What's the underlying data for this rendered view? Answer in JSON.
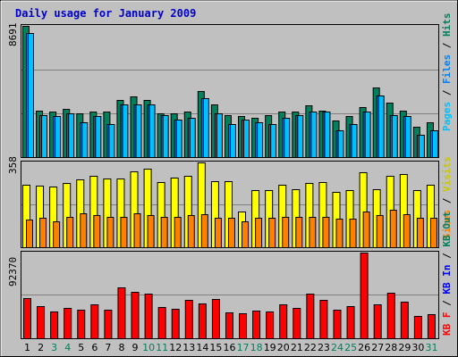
{
  "colors": {
    "background": "#c0c0c0",
    "border": "#000000",
    "title": "#0000cc",
    "hits": "#00805c",
    "files": "#0080ff",
    "pages": "#00c0ff",
    "visits": "#ffff00",
    "sites": "#ff8000",
    "kbf": "#ff0000",
    "kbin": "#0000ff",
    "kbout": "#00805c",
    "day_normal": "#000000",
    "day_weekend": "#00805c"
  },
  "chart_data": [
    {
      "type": "bar",
      "title": "Daily usage for January 2009",
      "x": [
        1,
        2,
        3,
        4,
        5,
        6,
        7,
        8,
        9,
        10,
        11,
        12,
        13,
        14,
        15,
        16,
        17,
        18,
        19,
        20,
        21,
        22,
        23,
        24,
        25,
        26,
        27,
        28,
        29,
        30,
        31
      ],
      "weekend_days": [
        3,
        4,
        10,
        11,
        17,
        18,
        24,
        25,
        31
      ],
      "ylim": [
        0,
        8691
      ],
      "y_tick_label": "8691",
      "legend": [
        "Pages",
        "Files",
        "Hits"
      ],
      "series": [
        {
          "name": "Hits",
          "values": [
            8691,
            3100,
            3000,
            3200,
            2900,
            3000,
            3000,
            3800,
            4000,
            3800,
            2900,
            2900,
            3000,
            4400,
            3500,
            2800,
            2700,
            2600,
            2800,
            3000,
            3000,
            3400,
            3100,
            2400,
            2700,
            3300,
            4600,
            3600,
            3100,
            2000,
            2300
          ]
        },
        {
          "name": "Files",
          "values": [
            8200,
            2800,
            2700,
            2900,
            2300,
            2700,
            2200,
            3500,
            3500,
            3500,
            2800,
            2500,
            2600,
            3900,
            2900,
            2200,
            2500,
            2300,
            2200,
            2600,
            2800,
            3000,
            3000,
            1800,
            2200,
            3000,
            4100,
            2800,
            2700,
            1500,
            1800
          ]
        },
        {
          "name": "Pages",
          "values": [
            8200,
            2800,
            2700,
            2900,
            2300,
            2700,
            2200,
            3500,
            3500,
            3500,
            2800,
            2500,
            2600,
            3900,
            2900,
            2200,
            2500,
            2300,
            2200,
            2600,
            2800,
            3000,
            3000,
            1800,
            2200,
            3000,
            4100,
            2800,
            2700,
            1500,
            1800
          ]
        }
      ]
    },
    {
      "type": "bar",
      "ylim": [
        0,
        358
      ],
      "y_tick_label": "358",
      "legend": [
        "Visits",
        "Sites"
      ],
      "series": [
        {
          "name": "Visits",
          "values": [
            265,
            260,
            255,
            270,
            285,
            300,
            290,
            290,
            320,
            330,
            275,
            295,
            300,
            358,
            280,
            280,
            150,
            240,
            240,
            265,
            245,
            270,
            275,
            235,
            240,
            315,
            245,
            300,
            310,
            240,
            265
          ]
        },
        {
          "name": "Sites",
          "values": [
            115,
            125,
            110,
            130,
            145,
            135,
            130,
            130,
            145,
            135,
            130,
            130,
            135,
            140,
            125,
            125,
            110,
            125,
            125,
            130,
            130,
            130,
            130,
            120,
            120,
            150,
            135,
            160,
            140,
            125,
            125
          ]
        }
      ]
    },
    {
      "type": "bar",
      "ylim": [
        0,
        92370
      ],
      "y_tick_label": "92370",
      "legend": [
        "KB F",
        "KB In",
        "KB Out"
      ],
      "series": [
        {
          "name": "KB F",
          "values": [
            43000,
            35000,
            29000,
            33000,
            31000,
            37000,
            31000,
            55000,
            50000,
            48000,
            34000,
            32000,
            41000,
            38000,
            42000,
            28000,
            27000,
            30000,
            29000,
            37000,
            33000,
            48000,
            41000,
            31000,
            35000,
            92370,
            37000,
            49000,
            39000,
            24000,
            26000
          ]
        }
      ]
    }
  ]
}
